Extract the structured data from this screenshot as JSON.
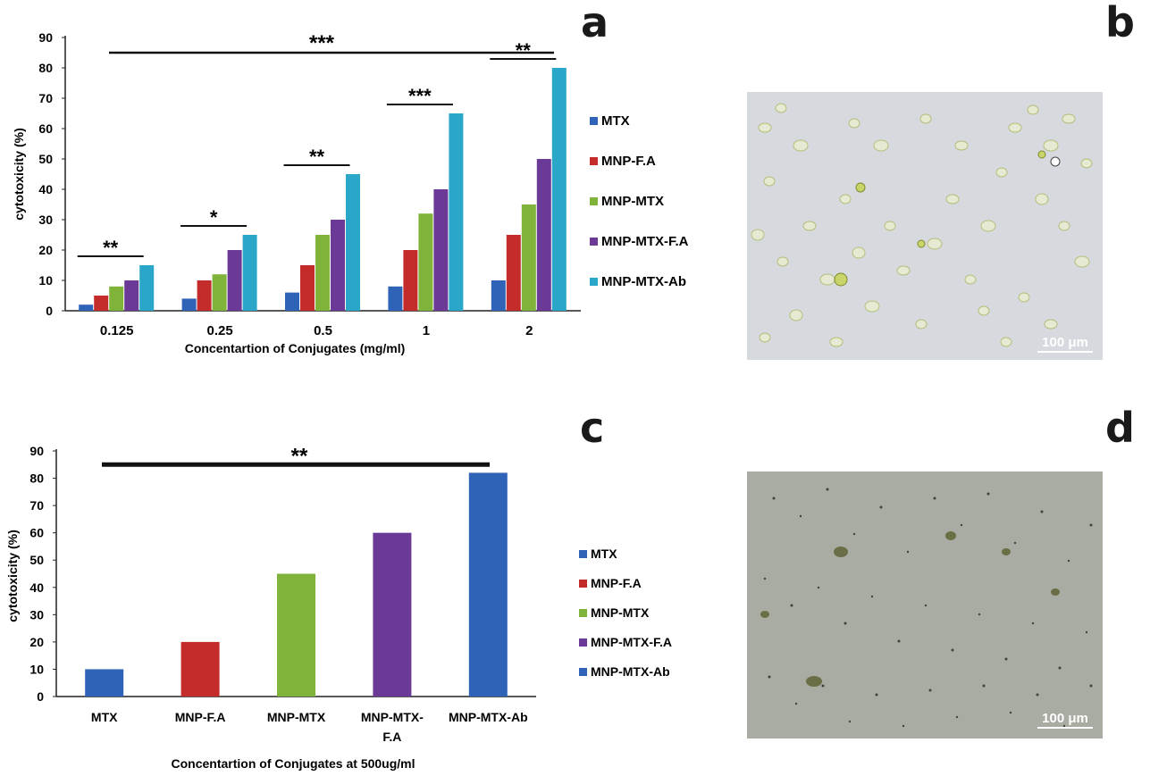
{
  "panel_labels": {
    "a": "a",
    "b": "b",
    "c": "c",
    "d": "d"
  },
  "micrographs": {
    "b": {
      "scale_label": "100 μm"
    },
    "d": {
      "scale_label": "100 μm"
    }
  },
  "colors": {
    "MTX": "#2e63b8",
    "MNP-F.A": "#c42b2b",
    "MNP-MTX": "#7fb33a",
    "MNP-MTX-F.A": "#6a3a96",
    "MNP-MTX-Ab": "#2aa6c9",
    "MNP-MTX-Ab (c)": "#2e63b8"
  },
  "chart_data": [
    {
      "type": "bar",
      "panel": "a",
      "categories": [
        "0.125",
        "0.25",
        "0.5",
        "1",
        "2"
      ],
      "series": [
        {
          "name": "MTX",
          "values": [
            2,
            4,
            6,
            8,
            10
          ]
        },
        {
          "name": "MNP-F.A",
          "values": [
            5,
            10,
            15,
            20,
            25
          ]
        },
        {
          "name": "MNP-MTX",
          "values": [
            8,
            12,
            25,
            32,
            35
          ]
        },
        {
          "name": "MNP-MTX-F.A",
          "values": [
            10,
            20,
            30,
            40,
            50
          ]
        },
        {
          "name": "MNP-MTX-Ab",
          "values": [
            15,
            25,
            45,
            65,
            80
          ]
        }
      ],
      "xlabel": "Concentartion of Conjugates (mg/ml)",
      "ylabel": "cytotoxicity (%)",
      "ylim": [
        0,
        90
      ],
      "yticks": [
        "0",
        "10",
        "20",
        "30",
        "40",
        "50",
        "60",
        "70",
        "80",
        "90"
      ],
      "legend_position": "right",
      "significance": [
        {
          "label": "**",
          "category": "0.125"
        },
        {
          "label": "*",
          "category": "0.25"
        },
        {
          "label": "**",
          "category": "0.5"
        },
        {
          "label": "***",
          "category": "1"
        },
        {
          "label": "**",
          "category": "2"
        },
        {
          "label": "***",
          "span": [
            "0.125",
            "2"
          ]
        }
      ]
    },
    {
      "type": "bar",
      "panel": "c",
      "categories": [
        "MTX",
        "MNP-F.A",
        "MNP-MTX",
        "MNP-MTX-F.A",
        "MNP-MTX-Ab"
      ],
      "category_lines": [
        [
          "MTX"
        ],
        [
          "MNP-F.A"
        ],
        [
          "MNP-MTX"
        ],
        [
          "MNP-MTX-",
          "F.A"
        ],
        [
          "MNP-MTX-Ab"
        ]
      ],
      "values": [
        10,
        20,
        45,
        60,
        82
      ],
      "bar_colors": [
        "#2e63b8",
        "#c42b2b",
        "#7fb33a",
        "#6a3a96",
        "#2e63b8"
      ],
      "legend": [
        "MTX",
        "MNP-F.A",
        "MNP-MTX",
        "MNP-MTX-F.A",
        "MNP-MTX-Ab"
      ],
      "xlabel": "Concentartion of Conjugates at 500ug/ml",
      "ylabel": "cytotoxicity (%)",
      "ylim": [
        0,
        90
      ],
      "yticks": [
        "0",
        "10",
        "20",
        "30",
        "40",
        "50",
        "60",
        "70",
        "80",
        "90"
      ],
      "legend_position": "right",
      "significance": [
        {
          "label": "**",
          "span": [
            "MTX",
            "MNP-MTX-Ab"
          ]
        }
      ]
    }
  ]
}
